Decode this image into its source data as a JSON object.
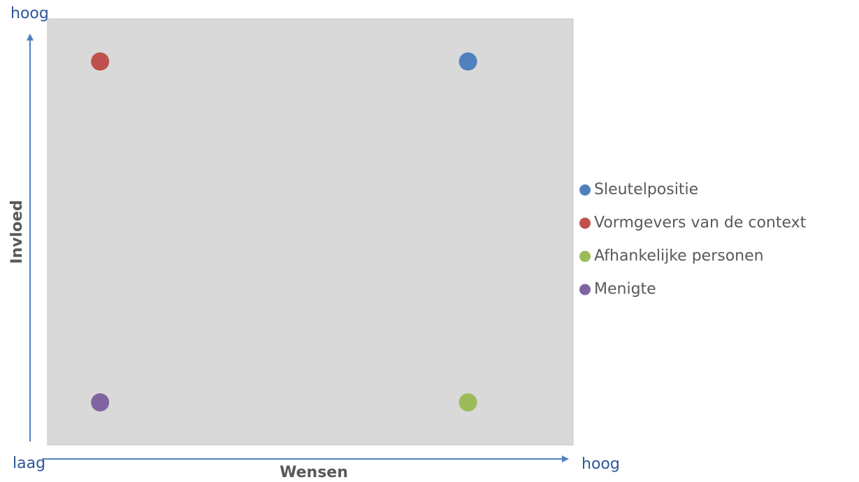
{
  "chart_data": {
    "type": "scatter",
    "x_label": "Wensen",
    "y_label": "Invloed",
    "annotations": [
      "hoog",
      "laag",
      "hoog"
    ],
    "xlim": [
      0,
      10
    ],
    "ylim": [
      0,
      10
    ],
    "legend": "right",
    "series": [
      {
        "name": "Sleutelpositie",
        "color": "#4f81bd",
        "x": [
          8
        ],
        "values": [
          9
        ]
      },
      {
        "name": "Vormgevers van de context",
        "color": "#c0504d",
        "x": [
          1
        ],
        "values": [
          9
        ]
      },
      {
        "name": "Afhankelijke personen",
        "color": "#9bbb59",
        "x": [
          8
        ],
        "values": [
          1
        ]
      },
      {
        "name": "Menigte",
        "color": "#8064a2",
        "x": [
          1
        ],
        "values": [
          1
        ]
      }
    ]
  }
}
